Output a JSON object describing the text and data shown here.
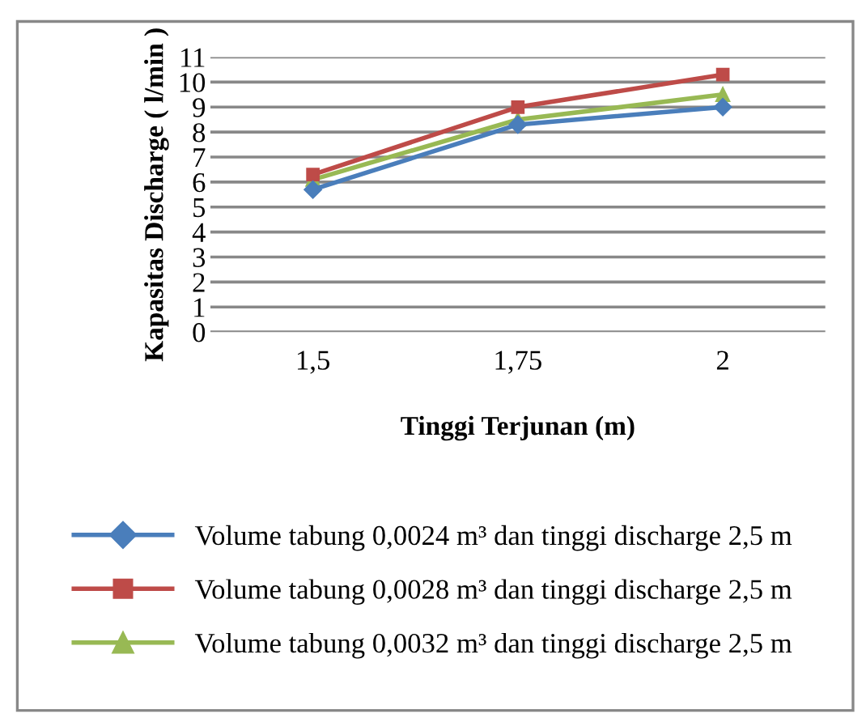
{
  "chart_data": {
    "type": "line",
    "xlabel": "Tinggi Terjunan (m)",
    "ylabel": "Kapasitas Discharge ( l/min )",
    "categories": [
      "1,5",
      "1,75",
      "2"
    ],
    "series": [
      {
        "name": "Volume tabung 0,0024 m³ dan tinggi discharge 2,5 m",
        "color": "#4a7ebb",
        "marker": "diamond",
        "values": [
          5.7,
          8.3,
          9.0
        ]
      },
      {
        "name": "Volume tabung 0,0028 m³ dan tinggi discharge 2,5 m",
        "color": "#be4b48",
        "marker": "square",
        "values": [
          6.3,
          9.0,
          10.3
        ]
      },
      {
        "name": "Volume tabung 0,0032 m³ dan tinggi discharge 2,5 m",
        "color": "#98b954",
        "marker": "triangle",
        "values": [
          6.1,
          8.5,
          9.5
        ]
      }
    ],
    "ylim": [
      0,
      11
    ],
    "yticks": [
      0,
      1,
      2,
      3,
      4,
      5,
      6,
      7,
      8,
      9,
      10,
      11
    ],
    "grid": "y",
    "legend": "bottom",
    "line_style": "solid"
  }
}
